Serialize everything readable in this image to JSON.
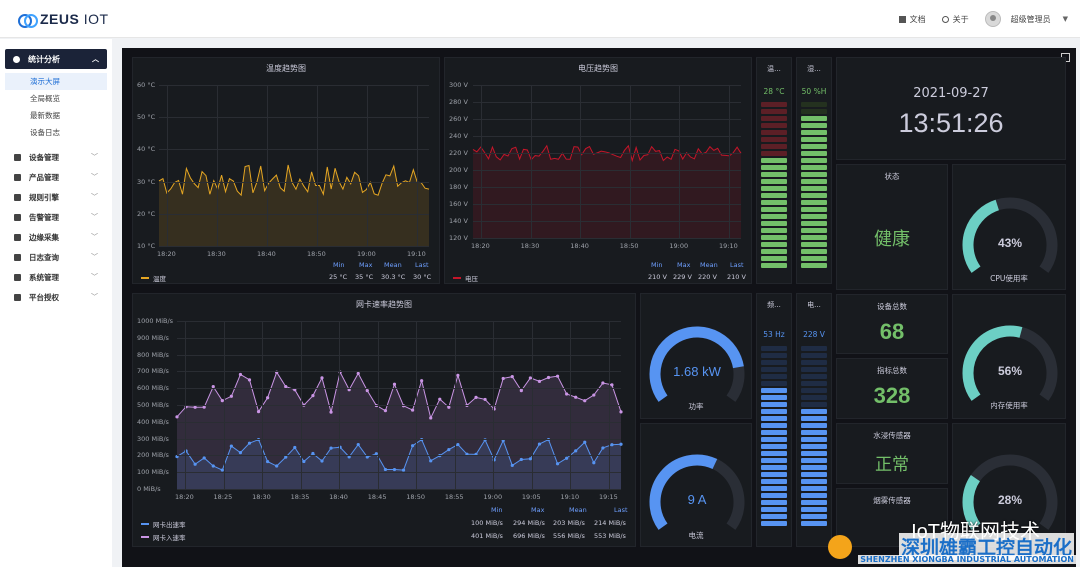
{
  "header": {
    "logo_bold": "ZEUS",
    "logo_light": "IOT",
    "docs": "文档",
    "about": "关于",
    "user": "超级管理员"
  },
  "sidebar": {
    "active_group": "统计分析",
    "sub_items": [
      "演示大屏",
      "全局概览",
      "最新数据",
      "设备日志"
    ],
    "items": [
      "设备管理",
      "产品管理",
      "规则引擎",
      "告警管理",
      "边缘采集",
      "日志查询",
      "系统管理",
      "平台授权"
    ]
  },
  "temp_chart": {
    "title": "温度趋势图",
    "yticks": [
      "60 °C",
      "50 °C",
      "40 °C",
      "30 °C",
      "20 °C",
      "10 °C"
    ],
    "xticks": [
      "18:20",
      "18:30",
      "18:40",
      "18:50",
      "19:00",
      "19:10"
    ],
    "legend_headers": [
      "Min",
      "Max",
      "Mean",
      "Last"
    ],
    "series_name": "温度",
    "stats": [
      "25 °C",
      "35 °C",
      "30.3 °C",
      "30 °C"
    ],
    "color": "#e5a623"
  },
  "volt_chart": {
    "title": "电压趋势图",
    "yticks": [
      "300 V",
      "280 V",
      "260 V",
      "240 V",
      "220 V",
      "200 V",
      "180 V",
      "160 V",
      "140 V",
      "120 V"
    ],
    "xticks": [
      "18:20",
      "18:30",
      "18:40",
      "18:50",
      "19:00",
      "19:10"
    ],
    "legend_headers": [
      "Min",
      "Max",
      "Mean",
      "Last"
    ],
    "series_name": "电压",
    "stats": [
      "210 V",
      "229 V",
      "220 V",
      "210 V"
    ],
    "color": "#c4162a"
  },
  "net_chart": {
    "title": "网卡速率趋势图",
    "yticks": [
      "1000 MiB/s",
      "900 MiB/s",
      "800 MiB/s",
      "700 MiB/s",
      "600 MiB/s",
      "500 MiB/s",
      "400 MiB/s",
      "300 MiB/s",
      "200 MiB/s",
      "100 MiB/s",
      "0 MiB/s"
    ],
    "xticks": [
      "18:20",
      "18:25",
      "18:30",
      "18:35",
      "18:40",
      "18:45",
      "18:50",
      "18:55",
      "19:00",
      "19:05",
      "19:10",
      "19:15"
    ],
    "legend_headers": [
      "Min",
      "Max",
      "Mean",
      "Last"
    ],
    "series": [
      {
        "name": "网卡出速率",
        "stats": [
          "100 MiB/s",
          "294 MiB/s",
          "203 MiB/s",
          "214 MiB/s"
        ],
        "color": "#5794f2"
      },
      {
        "name": "网卡入速率",
        "stats": [
          "401 MiB/s",
          "696 MiB/s",
          "556 MiB/s",
          "553 MiB/s"
        ],
        "color": "#ca95e5"
      }
    ]
  },
  "mini": {
    "temp": {
      "title": "温...",
      "value": "28 °C",
      "color": "#73bf69"
    },
    "hum": {
      "title": "湿...",
      "value": "50 %H",
      "color": "#73bf69"
    },
    "freq": {
      "title": "频...",
      "value": "53 Hz",
      "color": "#5794f2"
    },
    "volt": {
      "title": "电...",
      "value": "228 V",
      "color": "#5794f2"
    }
  },
  "clock": {
    "date": "2021-09-27",
    "time": "13:51:26"
  },
  "status": {
    "title": "状态",
    "value": "健康"
  },
  "cpu": {
    "label": "CPU使用率",
    "value": "43%",
    "fraction": 0.43
  },
  "mem": {
    "label": "内存使用率",
    "value": "56%",
    "fraction": 0.56
  },
  "disk": {
    "value": "28%",
    "fraction": 0.28
  },
  "devices": {
    "title": "设备总数",
    "value": "68"
  },
  "metrics": {
    "title": "指标总数",
    "value": "328"
  },
  "water": {
    "title": "水浸传感器",
    "value": "正常"
  },
  "smoke": {
    "title": "烟雾传感器"
  },
  "power": {
    "label": "功率",
    "value": "1.68 kW",
    "fraction": 0.82
  },
  "current": {
    "label": "电流",
    "value": "9 A",
    "fraction": 0.6
  },
  "watermark": {
    "top": "IoT物联网技术",
    "cn": "深圳雄霸工控自动化",
    "en": "SHENZHEN XIONGBA INDUSTRIAL AUTOMATION"
  }
}
